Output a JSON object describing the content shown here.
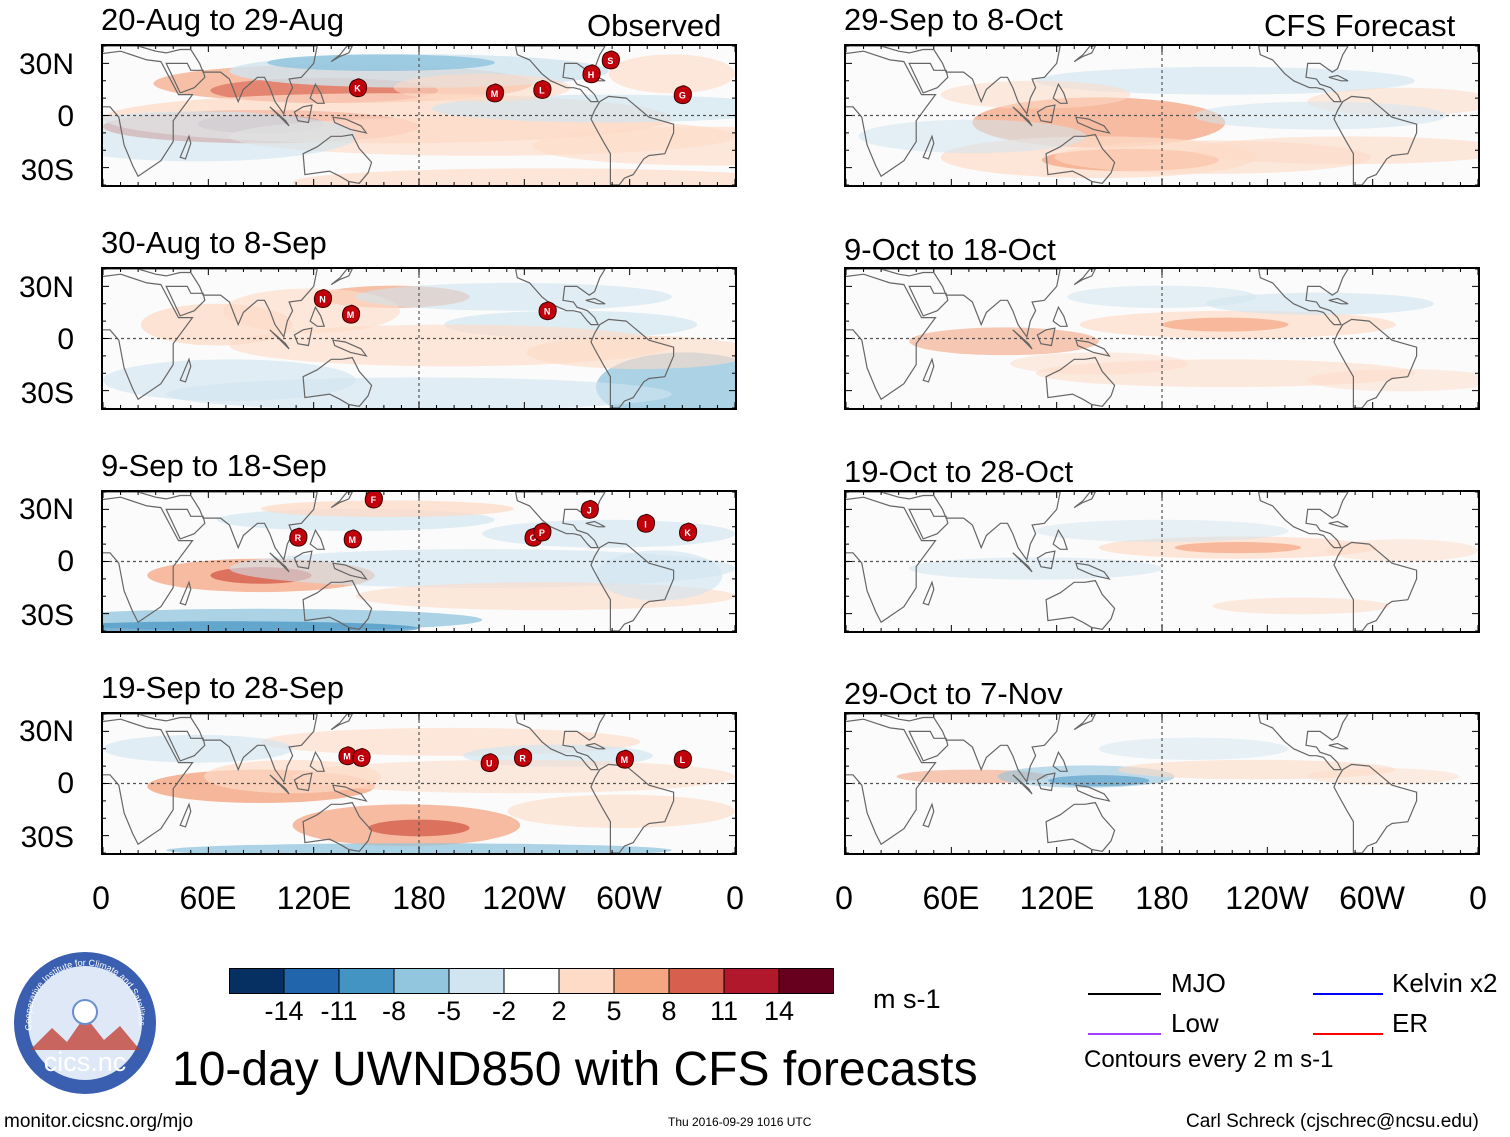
{
  "headings": {
    "observed": "Observed",
    "forecast": "CFS Forecast"
  },
  "panels_left": [
    {
      "title": "20-Aug to 29-Aug"
    },
    {
      "title": "30-Aug to 8-Sep"
    },
    {
      "title": "9-Sep to 18-Sep"
    },
    {
      "title": "19-Sep to 28-Sep"
    }
  ],
  "panels_right": [
    {
      "title": "29-Sep to 8-Oct"
    },
    {
      "title": "9-Oct to 18-Oct"
    },
    {
      "title": "19-Oct to 28-Oct"
    },
    {
      "title": "29-Oct to 7-Nov"
    }
  ],
  "y_axis_labels": [
    "30N",
    "0",
    "30S"
  ],
  "x_axis_labels": [
    "0",
    "60E",
    "120E",
    "180",
    "120W",
    "60W",
    "0"
  ],
  "storms": [
    [
      {
        "letter": "K",
        "lon": 145,
        "lat": 16
      },
      {
        "letter": "M",
        "lon": 223,
        "lat": 13
      },
      {
        "letter": "L",
        "lon": 250,
        "lat": 15
      },
      {
        "letter": "H",
        "lon": 278,
        "lat": 24
      },
      {
        "letter": "G",
        "lon": 330,
        "lat": 12
      },
      {
        "letter": "S",
        "lon": 289,
        "lat": 32
      }
    ],
    [
      {
        "letter": "N",
        "lon": 125,
        "lat": 23
      },
      {
        "letter": "M",
        "lon": 141,
        "lat": 14
      },
      {
        "letter": "N",
        "lon": 253,
        "lat": 16
      }
    ],
    [
      {
        "letter": "F",
        "lon": 154,
        "lat": 36
      },
      {
        "letter": "R",
        "lon": 111,
        "lat": 14
      },
      {
        "letter": "M",
        "lon": 142,
        "lat": 13
      },
      {
        "letter": "O",
        "lon": 245,
        "lat": 14
      },
      {
        "letter": "P",
        "lon": 250,
        "lat": 17
      },
      {
        "letter": "J",
        "lon": 277,
        "lat": 30
      },
      {
        "letter": "I",
        "lon": 309,
        "lat": 22
      },
      {
        "letter": "K",
        "lon": 333,
        "lat": 17
      }
    ],
    [
      {
        "letter": "M",
        "lon": 139,
        "lat": 16
      },
      {
        "letter": "G",
        "lon": 147,
        "lat": 15
      },
      {
        "letter": "U",
        "lon": 220,
        "lat": 12
      },
      {
        "letter": "R",
        "lon": 239,
        "lat": 15
      },
      {
        "letter": "M",
        "lon": 297,
        "lat": 14
      },
      {
        "letter": "L",
        "lon": 330,
        "lat": 14
      }
    ]
  ],
  "colorbar": {
    "colors": [
      "#053061",
      "#2166ac",
      "#4393c3",
      "#92c5de",
      "#d1e5f0",
      "#ffffff",
      "#fddbc7",
      "#f4a582",
      "#d6604d",
      "#b2182b",
      "#67001f"
    ],
    "labels": [
      "-14",
      "-11",
      "-8",
      "-5",
      "-2",
      "2",
      "5",
      "8",
      "11",
      "14"
    ],
    "units": "m s-1"
  },
  "legend": {
    "items": [
      {
        "label": "MJO",
        "color": "#000000"
      },
      {
        "label": "Kelvin x2",
        "color": "#0000ff"
      },
      {
        "label": "Low",
        "color": "#a040ff"
      },
      {
        "label": "ER",
        "color": "#ff0000"
      }
    ],
    "note": "Contours every 2 m s-1"
  },
  "logo": {
    "text": "cics.nc",
    "ring_text": "Cooperative Institute for Climate and Satellites"
  },
  "main_title": "10-day UWND850 with CFS forecasts",
  "footer": {
    "url": "monitor.cicsnc.org/mjo",
    "timestamp": "Thu 2016-09-29 1016 UTC",
    "author": "Carl Schreck (cjschrec@ncsu.edu)"
  }
}
